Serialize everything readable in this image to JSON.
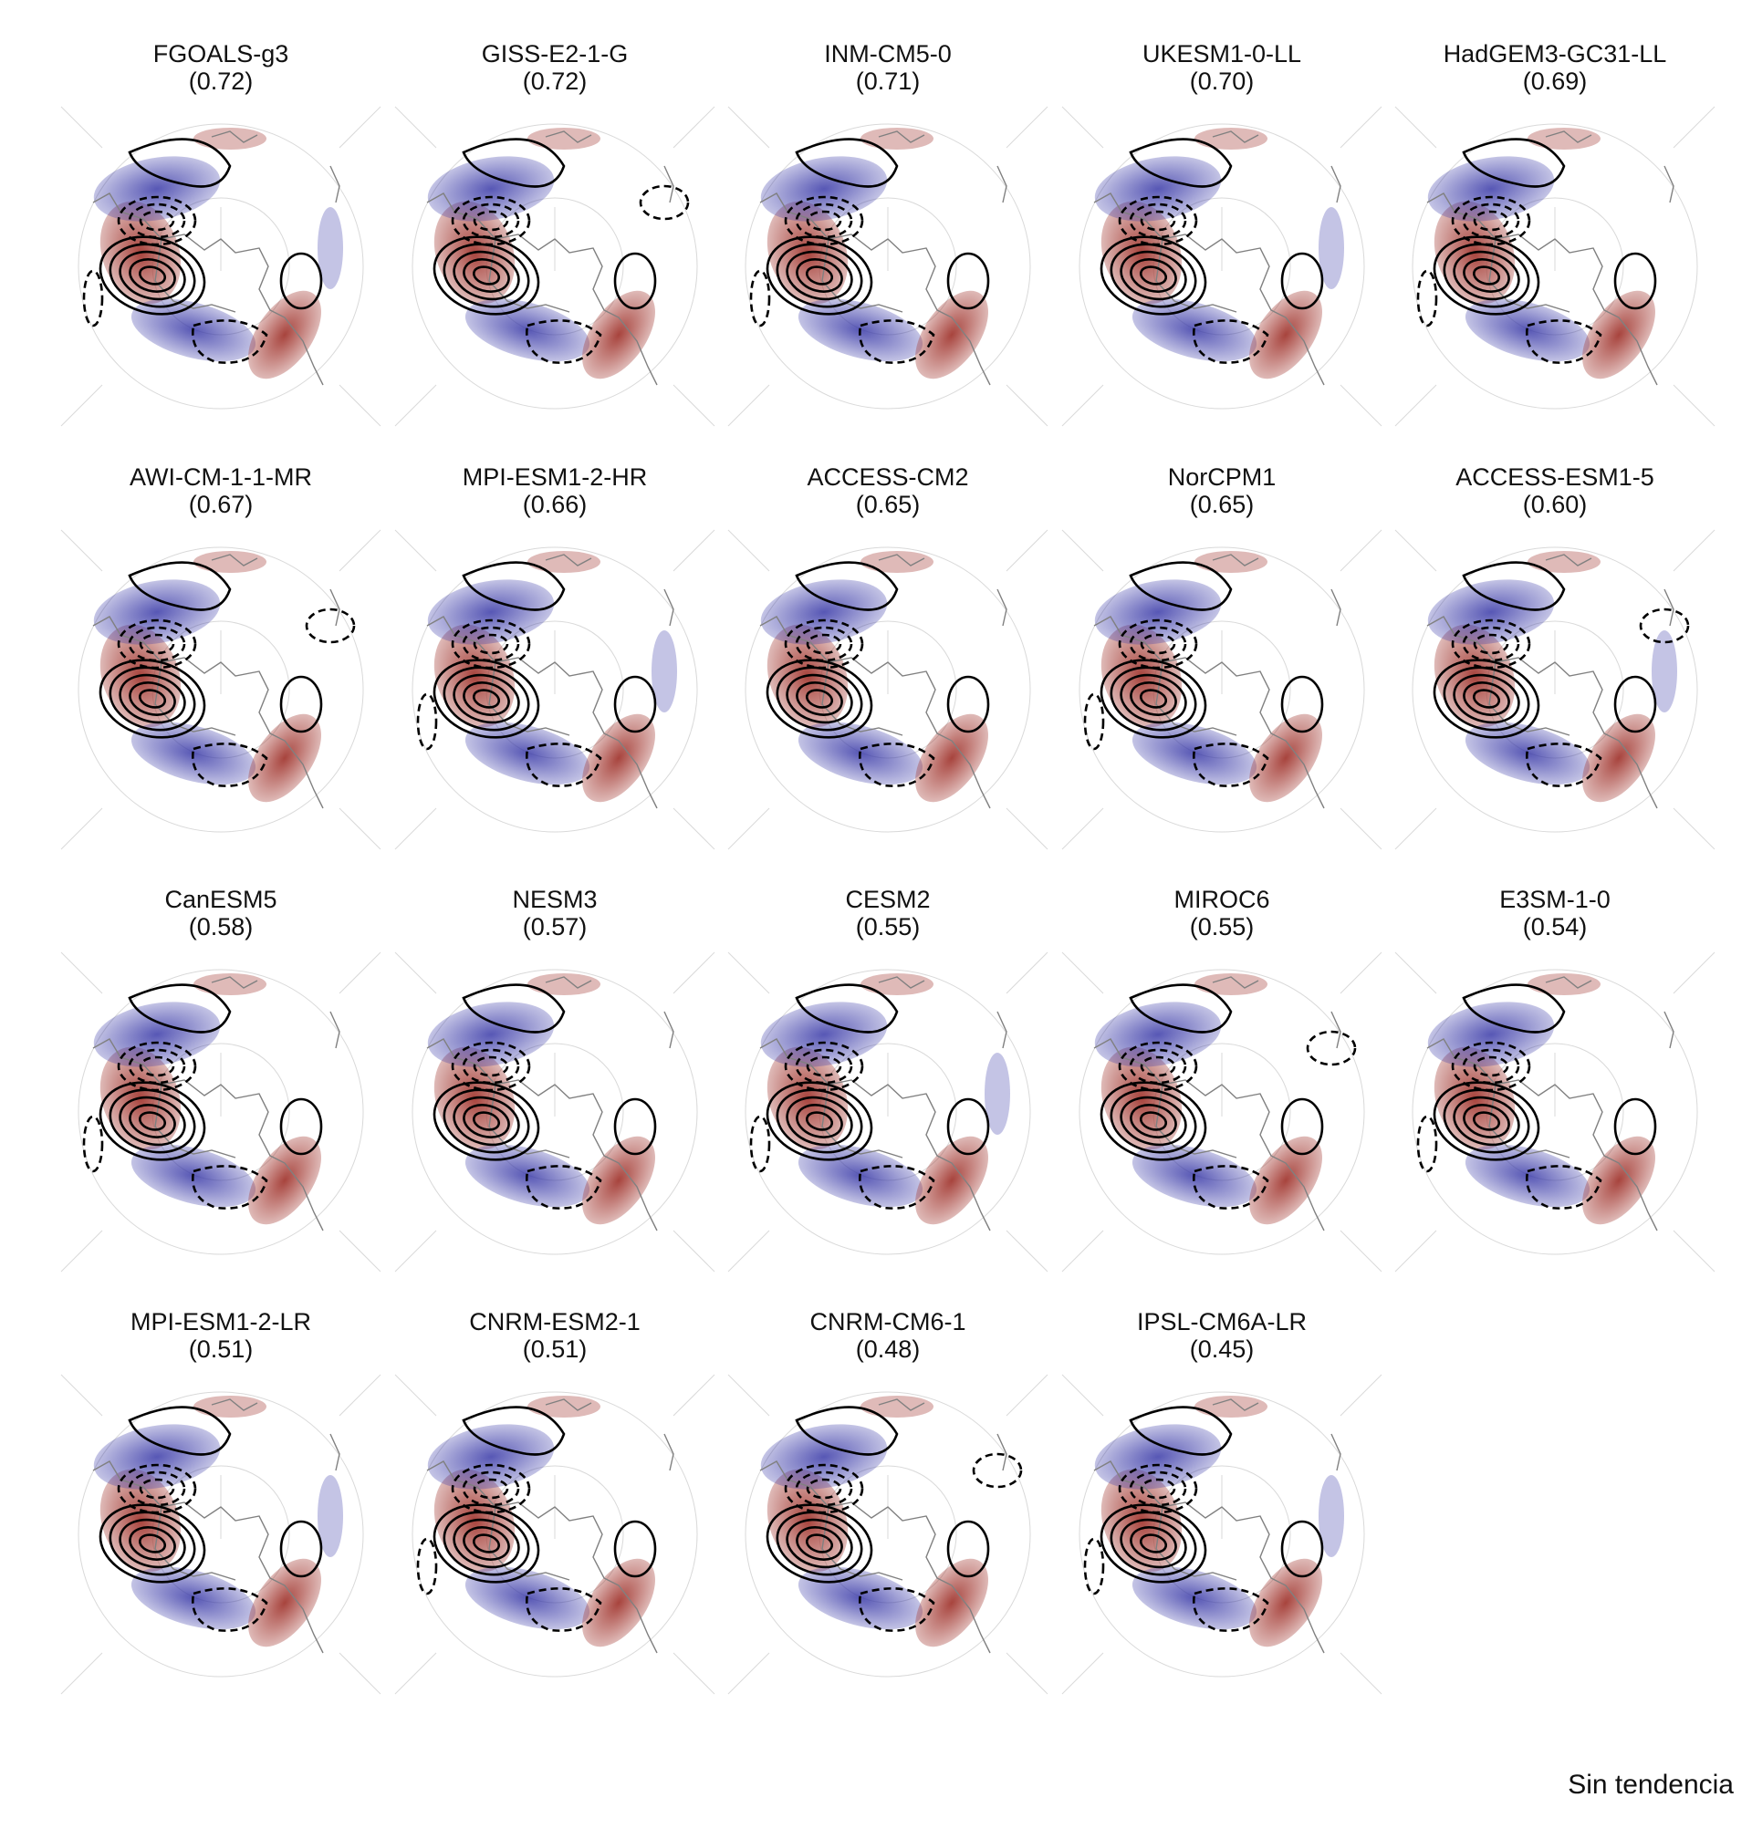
{
  "panels": [
    {
      "model": "FGOALS-g3",
      "score": "(0.72)"
    },
    {
      "model": "GISS-E2-1-G",
      "score": "(0.72)"
    },
    {
      "model": "INM-CM5-0",
      "score": "(0.71)"
    },
    {
      "model": "UKESM1-0-LL",
      "score": "(0.70)"
    },
    {
      "model": "HadGEM3-GC31-LL",
      "score": "(0.69)"
    },
    {
      "model": "AWI-CM-1-1-MR",
      "score": "(0.67)"
    },
    {
      "model": "MPI-ESM1-2-HR",
      "score": "(0.66)"
    },
    {
      "model": "ACCESS-CM2",
      "score": "(0.65)"
    },
    {
      "model": "NorCPM1",
      "score": "(0.65)"
    },
    {
      "model": "ACCESS-ESM1-5",
      "score": "(0.60)"
    },
    {
      "model": "CanESM5",
      "score": "(0.58)"
    },
    {
      "model": "NESM3",
      "score": "(0.57)"
    },
    {
      "model": "CESM2",
      "score": "(0.55)"
    },
    {
      "model": "MIROC6",
      "score": "(0.55)"
    },
    {
      "model": "E3SM-1-0",
      "score": "(0.54)"
    },
    {
      "model": "MPI-ESM1-2-LR",
      "score": "(0.51)"
    },
    {
      "model": "CNRM-ESM2-1",
      "score": "(0.51)"
    },
    {
      "model": "CNRM-CM6-1",
      "score": "(0.48)"
    },
    {
      "model": "IPSL-CM6A-LR",
      "score": "(0.45)"
    }
  ],
  "footer": "Sin tendencia",
  "colors": {
    "positive": "#a33a33",
    "negative": "#3a3aa8",
    "contour": "#000000",
    "coast": "#808080",
    "grid": "#d9d9d9"
  }
}
